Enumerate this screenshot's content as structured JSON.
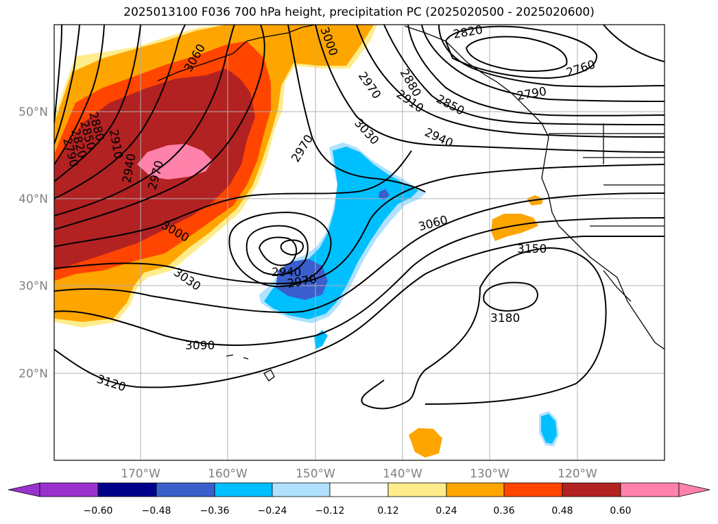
{
  "title": "2025013100 F036 700 hPa height, precipitation PC (2025020500 - 2025020600)",
  "axes": {
    "lat_labels": [
      "50°N",
      "40°N",
      "30°N",
      "20°N"
    ],
    "lon_labels": [
      "170°W",
      "160°W",
      "150°W",
      "140°W",
      "130°W",
      "120°W"
    ],
    "tick_color": "#7f7f7f"
  },
  "colorbar": {
    "ticks": [
      "−0.60",
      "−0.48",
      "−0.36",
      "−0.24",
      "−0.12",
      "0.12",
      "0.24",
      "0.36",
      "0.48",
      "0.60"
    ],
    "colors": [
      "#9932cc",
      "#00008b",
      "#3a5fcd",
      "#00bfff",
      "#b0e2ff",
      "#ffffff",
      "#ffec8b",
      "#ffa500",
      "#ff4500",
      "#b22222",
      "#ff82ab"
    ]
  },
  "contour_labels": [
    {
      "text": "2820",
      "kind": "height"
    },
    {
      "text": "2760",
      "kind": "height"
    },
    {
      "text": "2790",
      "kind": "height"
    },
    {
      "text": "2850",
      "kind": "height"
    },
    {
      "text": "2880",
      "kind": "height"
    },
    {
      "text": "2910",
      "kind": "height"
    },
    {
      "text": "2940",
      "kind": "height"
    },
    {
      "text": "2970",
      "kind": "height"
    },
    {
      "text": "3000",
      "kind": "height"
    },
    {
      "text": "3030",
      "kind": "height"
    },
    {
      "text": "3060",
      "kind": "height"
    },
    {
      "text": "3090",
      "kind": "height"
    },
    {
      "text": "3120",
      "kind": "height"
    },
    {
      "text": "3150",
      "kind": "height"
    },
    {
      "text": "3180",
      "kind": "height"
    },
    {
      "text": "2940",
      "kind": "low-center"
    },
    {
      "text": "2970",
      "kind": "low-center"
    },
    {
      "text": "3000",
      "kind": "height"
    },
    {
      "text": "3030",
      "kind": "height"
    },
    {
      "text": "3060",
      "kind": "height"
    },
    {
      "text": "2880",
      "kind": "height"
    },
    {
      "text": "2850",
      "kind": "height"
    },
    {
      "text": "2820",
      "kind": "height"
    },
    {
      "text": "2790",
      "kind": "height"
    },
    {
      "text": "2910",
      "kind": "height"
    },
    {
      "text": "2940",
      "kind": "height"
    },
    {
      "text": "2970",
      "kind": "height"
    },
    {
      "text": "2970",
      "kind": "height"
    },
    {
      "text": "2910",
      "kind": "height"
    },
    {
      "text": "2880",
      "kind": "height"
    }
  ]
}
